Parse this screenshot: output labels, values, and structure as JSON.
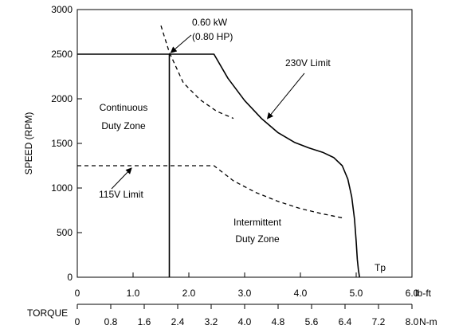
{
  "chart_data": {
    "type": "line",
    "ylabel": "SPEED (RPM)",
    "ylim": [
      0,
      3000
    ],
    "yticks": [
      0,
      500,
      1000,
      1500,
      2000,
      2500,
      3000
    ],
    "xlim": [
      0,
      6.0
    ],
    "xticks": [
      "0",
      "1.0",
      "2.0",
      "3.0",
      "4.0",
      "5.0",
      "6.0"
    ],
    "xunit": "lb-ft",
    "x2label": "TORQUE",
    "x2lim": [
      0,
      8.0
    ],
    "x2ticks": [
      "0",
      "0.8",
      "1.6",
      "2.4",
      "3.2",
      "4.0",
      "4.8",
      "5.6",
      "6.4",
      "7.2",
      "8.0"
    ],
    "x2unit": "N-m",
    "grid": false,
    "series": [
      {
        "key": "continuous-boundary",
        "style": "solid",
        "x": [
          1.65,
          1.65,
          0
        ],
        "y": [
          0,
          2500,
          2500
        ]
      },
      {
        "key": "limit-230v",
        "style": "solid",
        "x": [
          1.65,
          2.45,
          2.7,
          3.0,
          3.3,
          3.6,
          3.9,
          4.15,
          4.4,
          4.6,
          4.75,
          4.85,
          4.92,
          4.97,
          5.0,
          5.02,
          5.04,
          5.06
        ],
        "y": [
          2500,
          2500,
          2230,
          1980,
          1780,
          1620,
          1510,
          1450,
          1400,
          1340,
          1250,
          1100,
          900,
          650,
          400,
          200,
          80,
          0
        ]
      },
      {
        "key": "limit-115v",
        "style": "dashed",
        "x": [
          0,
          2.45,
          2.8,
          3.2,
          3.6,
          4.0,
          4.4,
          4.8
        ],
        "y": [
          1250,
          1250,
          1080,
          950,
          850,
          770,
          710,
          660
        ]
      },
      {
        "key": "power-curve",
        "style": "dashed",
        "x": [
          1.5,
          1.65,
          1.9,
          2.2,
          2.5,
          2.8
        ],
        "y": [
          2820,
          2520,
          2180,
          1990,
          1860,
          1780
        ]
      }
    ],
    "annotations": {
      "power_line1": "0.60 kW",
      "power_line2": "(0.80 HP)",
      "limit_230v": "230V Limit",
      "limit_115v": "115V Limit",
      "continuous_line1": "Continuous",
      "continuous_line2": "Duty Zone",
      "intermittent_line1": "Intermittent",
      "intermittent_line2": "Duty Zone",
      "tp": "Tp"
    }
  }
}
